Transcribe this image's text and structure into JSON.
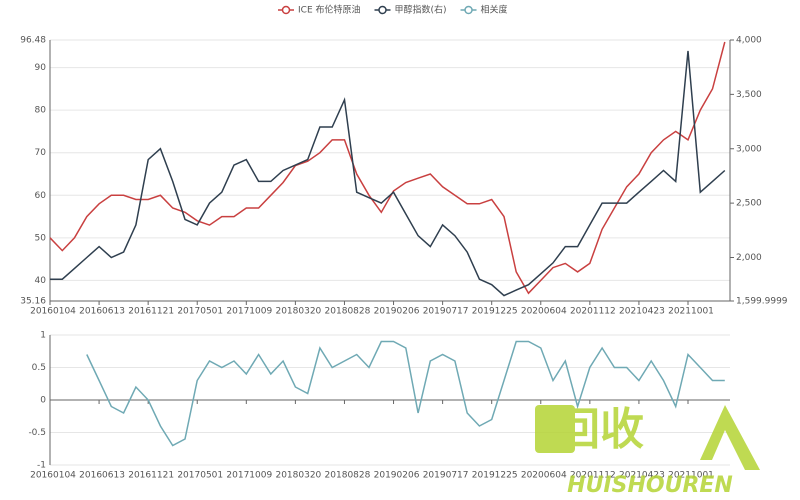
{
  "chart_data": [
    {
      "type": "line",
      "categories": [
        "20160104",
        null,
        null,
        null,
        "20160613",
        null,
        null,
        null,
        "20161121",
        null,
        null,
        null,
        "20170501",
        null,
        null,
        null,
        "20171009",
        null,
        null,
        null,
        "20180320",
        null,
        null,
        null,
        "20180828",
        null,
        null,
        null,
        "20190206",
        null,
        null,
        null,
        "20190717",
        null,
        null,
        null,
        "20191225",
        null,
        null,
        null,
        "20200604",
        null,
        null,
        null,
        "20201112",
        null,
        null,
        null,
        "20210423",
        null,
        null,
        null,
        "20211001",
        null,
        null,
        null
      ],
      "series": [
        {
          "name": "ICE 布伦特原油",
          "color": "#c94040",
          "values": [
            50,
            47,
            50,
            55,
            58,
            60,
            60,
            59,
            59,
            60,
            57,
            56,
            54,
            53,
            55,
            55,
            57,
            57,
            60,
            63,
            67,
            68,
            70,
            73,
            73,
            65,
            60,
            56,
            61,
            63,
            64,
            65,
            62,
            60,
            58,
            58,
            59,
            55,
            42,
            37,
            40,
            43,
            44,
            42,
            44,
            52,
            57,
            62,
            65,
            70,
            73,
            75,
            73,
            80,
            85,
            96
          ]
        },
        {
          "name": "甲醇指数(右)",
          "color": "#2f3f4f",
          "axis": "y2",
          "values": [
            1800,
            1800,
            1900,
            2000,
            2100,
            2000,
            2050,
            2300,
            2900,
            3000,
            2700,
            2350,
            2300,
            2500,
            2600,
            2850,
            2900,
            2700,
            2700,
            2800,
            2850,
            2900,
            3200,
            3200,
            3450,
            2600,
            2550,
            2500,
            2600,
            2400,
            2200,
            2100,
            2300,
            2200,
            2050,
            1800,
            1750,
            1650,
            1700,
            1750,
            1850,
            1950,
            2100,
            2100,
            2300,
            2500,
            2500,
            2500,
            2600,
            2700,
            2800,
            2700,
            3900,
            2600,
            2700,
            2800
          ]
        }
      ],
      "ylim": [
        35.16,
        96.48
      ],
      "yticks": [
        35.16,
        40,
        50,
        60,
        70,
        80,
        90,
        96.48
      ],
      "y2lim": [
        1599.9999,
        4000
      ],
      "y2ticks": [
        {
          "value": 1599.9999,
          "label": "1,599.9999"
        },
        {
          "value": 2000,
          "label": "2,000"
        },
        {
          "value": 2500,
          "label": "2,500"
        },
        {
          "value": 3000,
          "label": "3,000"
        },
        {
          "value": 3500,
          "label": "3,500"
        },
        {
          "value": 4000,
          "label": "4,000"
        }
      ],
      "grid": true
    },
    {
      "type": "line",
      "categories": [
        "20160104",
        null,
        null,
        null,
        "20160613",
        null,
        null,
        null,
        "20161121",
        null,
        null,
        null,
        "20170501",
        null,
        null,
        null,
        "20171009",
        null,
        null,
        null,
        "20180320",
        null,
        null,
        null,
        "20180828",
        null,
        null,
        null,
        "20190206",
        null,
        null,
        null,
        "20190717",
        null,
        null,
        null,
        "20191225",
        null,
        null,
        null,
        "20200604",
        null,
        null,
        null,
        "20201112",
        null,
        null,
        null,
        "20210423",
        null,
        null,
        null,
        "20211001",
        null,
        null,
        null
      ],
      "series": [
        {
          "name": "相关度",
          "color": "#6fa9b4",
          "values": [
            null,
            null,
            null,
            0.7,
            0.3,
            -0.1,
            -0.2,
            0.2,
            0,
            -0.4,
            -0.7,
            -0.6,
            0.3,
            0.6,
            0.5,
            0.6,
            0.4,
            0.7,
            0.4,
            0.6,
            0.2,
            0.1,
            0.8,
            0.5,
            0.6,
            0.7,
            0.5,
            0.9,
            0.9,
            0.8,
            -0.2,
            0.6,
            0.7,
            0.6,
            -0.2,
            -0.4,
            -0.3,
            0.3,
            0.9,
            0.9,
            0.8,
            0.3,
            0.6,
            -0.1,
            0.5,
            0.8,
            0.5,
            0.5,
            0.3,
            0.6,
            0.3,
            -0.1,
            0.7,
            0.5,
            0.3,
            0.3
          ]
        }
      ],
      "ylim": [
        -1,
        1
      ],
      "yticks": [
        -1,
        -0.5,
        0,
        0.5,
        1
      ],
      "grid": true
    }
  ],
  "watermark": {
    "text": "回收",
    "subtext": "HUISHOUREN"
  }
}
